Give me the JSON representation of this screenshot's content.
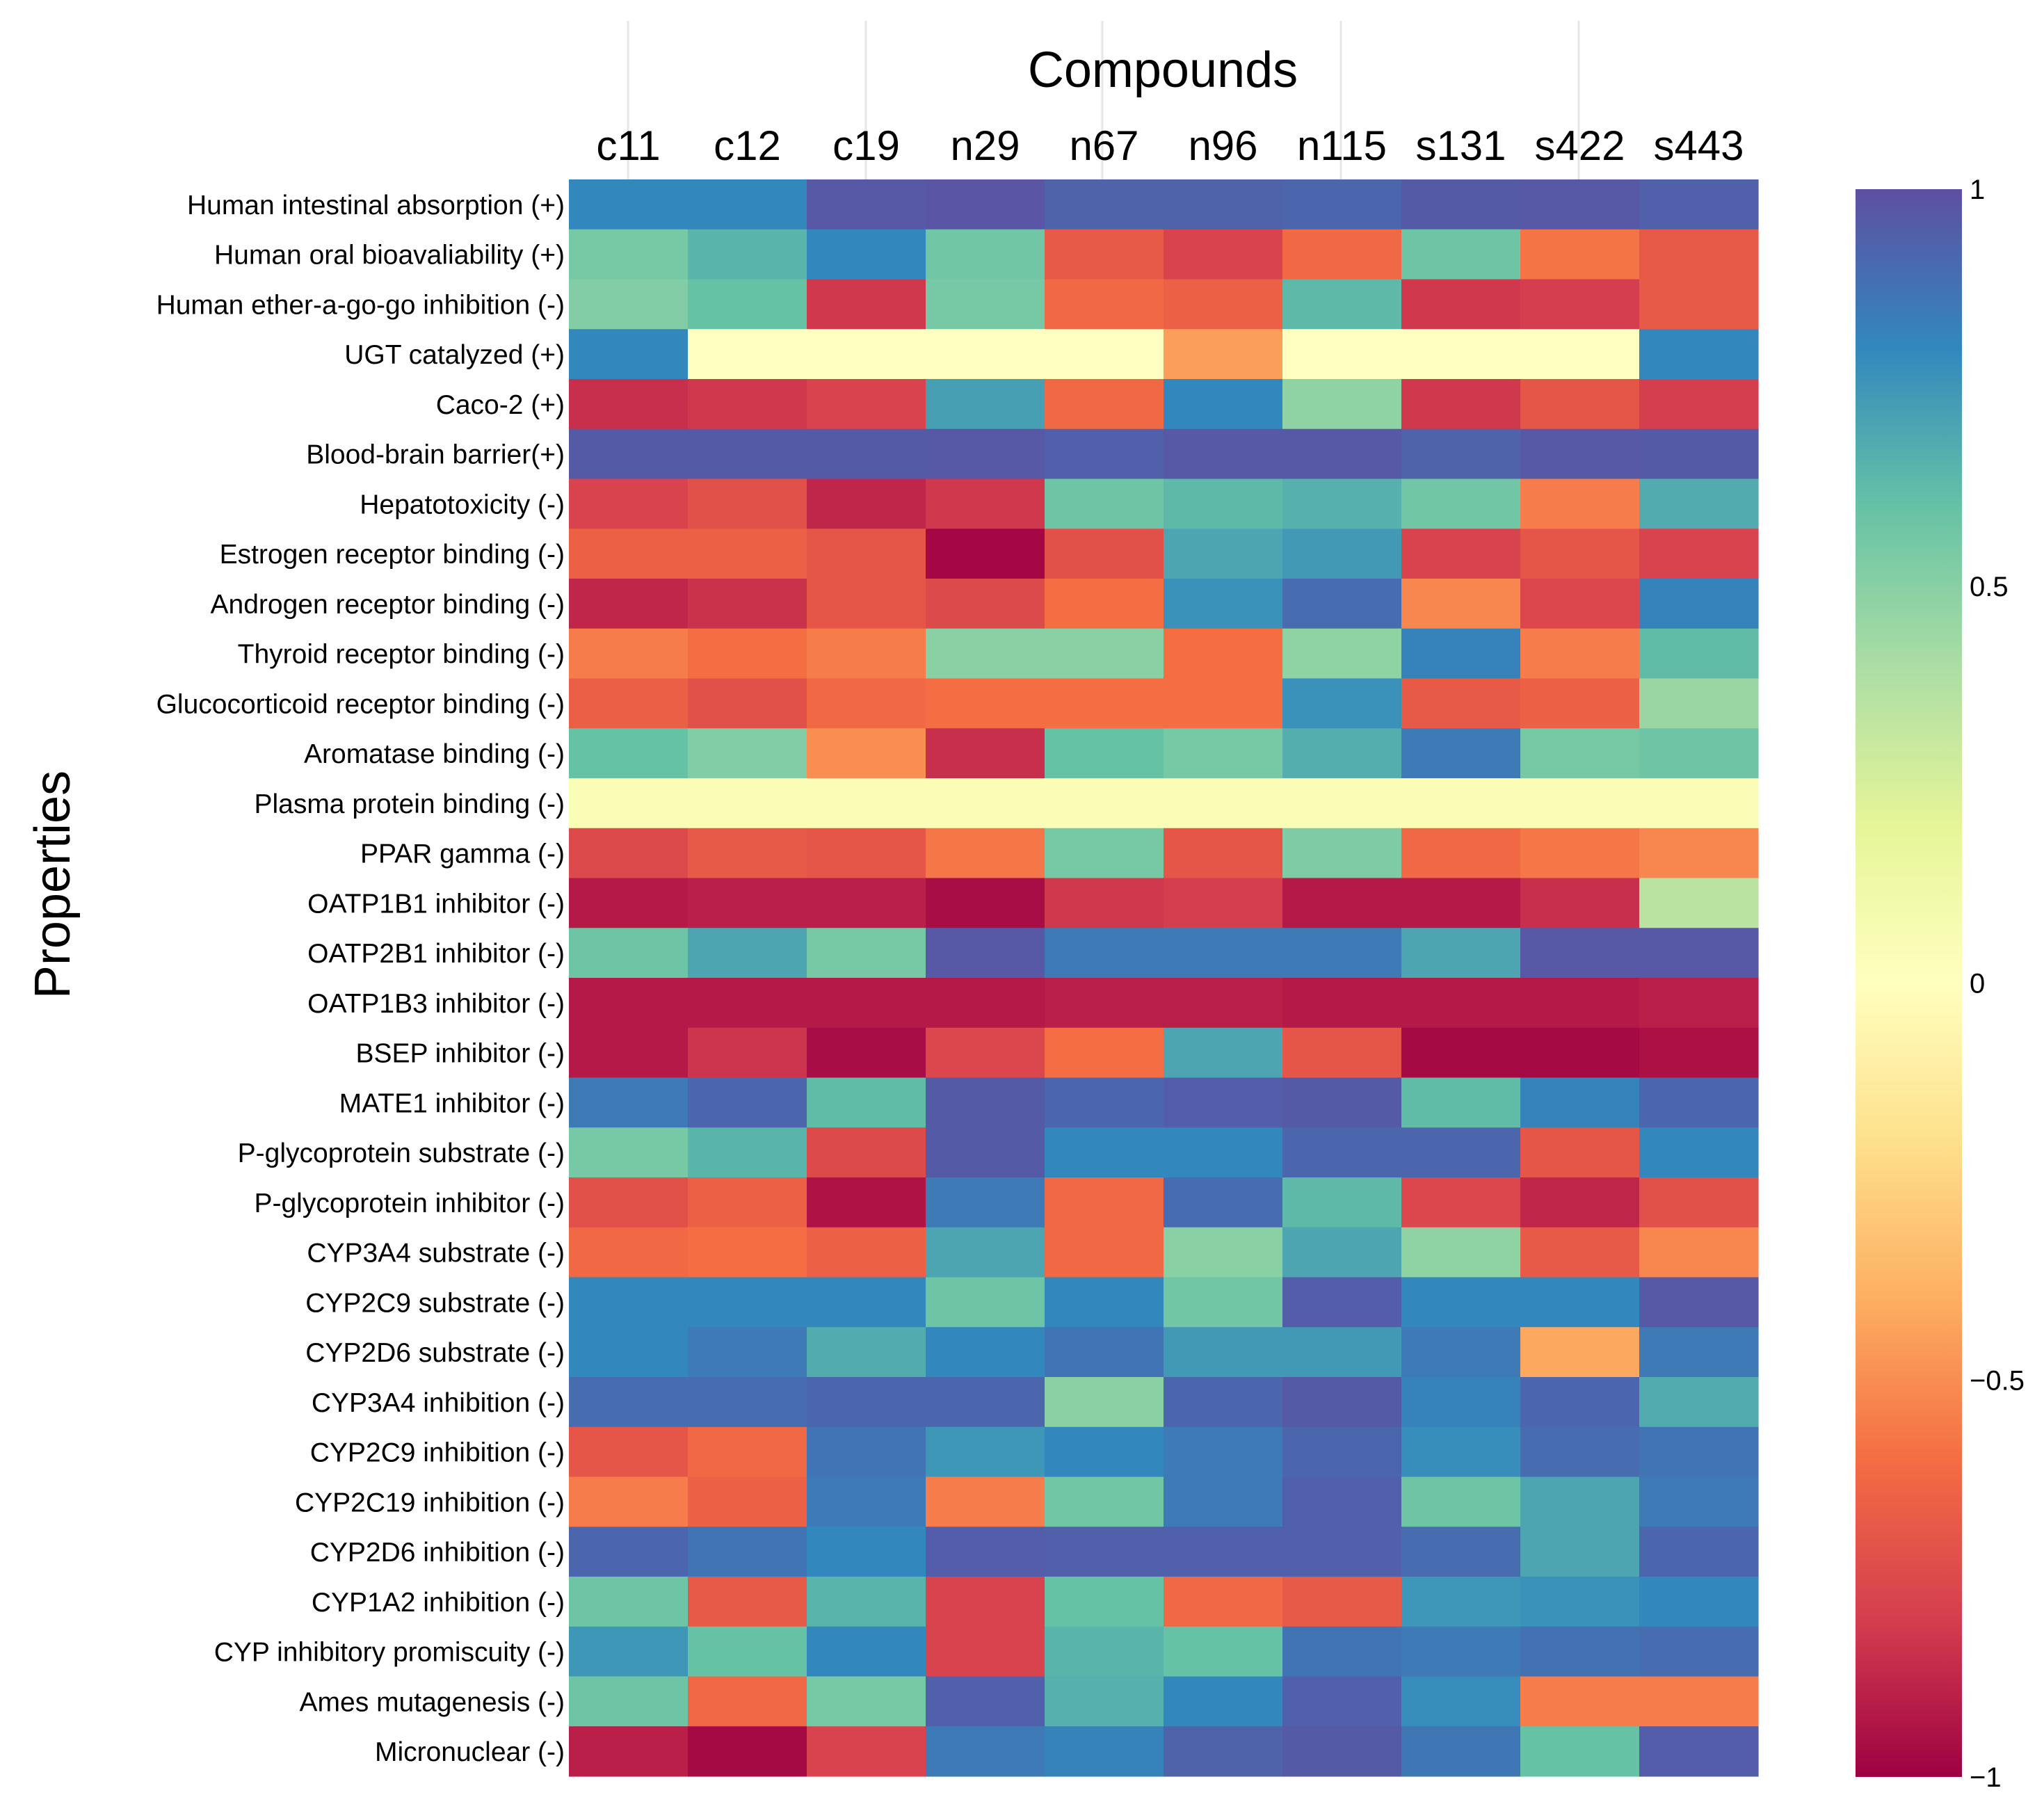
{
  "chart_data": {
    "type": "heatmap",
    "title": "Compounds",
    "xlabel": "Compounds",
    "ylabel": "Properties",
    "x_tick_position": "top",
    "categories": [
      "c11",
      "c12",
      "c19",
      "n29",
      "n67",
      "n96",
      "n115",
      "s131",
      "s422",
      "s443"
    ],
    "rows": [
      "Human intestinal absorption (+)",
      "Human oral bioavaliability (+)",
      "Human ether-a-go-go inhibition (-)",
      "UGT catalyzed (+)",
      "Caco-2 (+)",
      "Blood-brain barrier(+)",
      "Hepatotoxicity (-)",
      "Estrogen receptor binding (-)",
      "Androgen receptor binding (-)",
      "Thyroid receptor binding (-)",
      "Glucocorticoid receptor binding (-)",
      "Aromatase binding (-)",
      "Plasma protein binding (-)",
      "PPAR gamma (-)",
      "OATP1B1 inhibitor (-)",
      "OATP2B1 inhibitor (-)",
      "OATP1B3 inhibitor  (-)",
      "BSEP inhibitor (-)",
      "MATE1 inhibitor (-)",
      "P-glycoprotein substrate (-)",
      "P-glycoprotein inhibitor (-)",
      "CYP3A4 substrate  (-)",
      "CYP2C9 substrate (-)",
      "CYP2D6 substrate (-)",
      "CYP3A4 inhibition (-)",
      "CYP2C9 inhibition (-)",
      "CYP2C19 inhibition (-)",
      "CYP2D6 inhibition (-)",
      "CYP1A2 inhibition (-)",
      "CYP inhibitory promiscuity (-)",
      "Ames mutagenesis (-)",
      "Micronuclear (-)"
    ],
    "values": [
      [
        0.8,
        0.8,
        0.97,
        0.98,
        0.93,
        0.93,
        0.92,
        0.96,
        0.97,
        0.94
      ],
      [
        0.55,
        0.65,
        0.8,
        0.57,
        -0.68,
        -0.78,
        -0.62,
        0.58,
        -0.58,
        -0.68
      ],
      [
        0.52,
        0.6,
        -0.82,
        0.55,
        -0.62,
        -0.65,
        0.63,
        -0.82,
        -0.8,
        -0.68
      ],
      [
        0.8,
        0.0,
        0.0,
        0.0,
        0.0,
        -0.45,
        0.0,
        0.0,
        0.0,
        0.8
      ],
      [
        -0.85,
        -0.82,
        -0.78,
        0.72,
        -0.62,
        0.8,
        0.48,
        -0.82,
        -0.7,
        -0.8
      ],
      [
        0.96,
        0.96,
        0.96,
        0.97,
        0.94,
        0.97,
        0.97,
        0.93,
        0.97,
        0.96
      ],
      [
        -0.78,
        -0.72,
        -0.88,
        -0.82,
        0.58,
        0.63,
        0.66,
        0.57,
        -0.55,
        0.68
      ],
      [
        -0.65,
        -0.65,
        -0.7,
        -0.98,
        -0.72,
        0.7,
        0.74,
        -0.78,
        -0.7,
        -0.78
      ],
      [
        -0.88,
        -0.84,
        -0.7,
        -0.75,
        -0.6,
        0.77,
        0.9,
        -0.52,
        -0.76,
        0.82
      ],
      [
        -0.55,
        -0.6,
        -0.55,
        0.5,
        0.5,
        -0.6,
        0.48,
        0.82,
        -0.55,
        0.62
      ],
      [
        -0.66,
        -0.72,
        -0.62,
        -0.6,
        -0.6,
        -0.6,
        0.77,
        -0.68,
        -0.65,
        0.45
      ],
      [
        0.6,
        0.52,
        -0.5,
        -0.85,
        0.6,
        0.55,
        0.67,
        0.85,
        0.55,
        0.58
      ],
      [
        0.05,
        0.05,
        0.05,
        0.05,
        0.05,
        0.05,
        0.05,
        0.05,
        0.05,
        0.05
      ],
      [
        -0.75,
        -0.68,
        -0.7,
        -0.57,
        0.55,
        -0.7,
        0.53,
        -0.62,
        -0.57,
        -0.52
      ],
      [
        -0.92,
        -0.9,
        -0.9,
        -0.96,
        -0.82,
        -0.8,
        -0.92,
        -0.92,
        -0.85,
        0.35
      ],
      [
        0.58,
        0.7,
        0.55,
        0.97,
        0.85,
        0.85,
        0.85,
        0.7,
        0.97,
        0.97
      ],
      [
        -0.92,
        -0.92,
        -0.92,
        -0.92,
        -0.9,
        -0.9,
        -0.92,
        -0.92,
        -0.92,
        -0.9
      ],
      [
        -0.92,
        -0.83,
        -0.96,
        -0.76,
        -0.6,
        0.7,
        -0.7,
        -0.97,
        -0.97,
        -0.95
      ],
      [
        0.85,
        0.92,
        0.62,
        0.96,
        0.92,
        0.95,
        0.96,
        0.62,
        0.82,
        0.92
      ],
      [
        0.55,
        0.65,
        -0.75,
        0.96,
        0.8,
        0.8,
        0.92,
        0.92,
        -0.7,
        0.8
      ],
      [
        -0.72,
        -0.65,
        -0.94,
        0.85,
        -0.62,
        0.9,
        0.63,
        -0.76,
        -0.88,
        -0.72
      ],
      [
        -0.62,
        -0.6,
        -0.65,
        0.7,
        -0.62,
        0.5,
        0.7,
        0.48,
        -0.68,
        -0.52
      ],
      [
        0.8,
        0.8,
        0.8,
        0.58,
        0.8,
        0.57,
        0.95,
        0.8,
        0.8,
        0.97
      ],
      [
        0.8,
        0.85,
        0.68,
        0.8,
        0.87,
        0.74,
        0.74,
        0.85,
        -0.42,
        0.85
      ],
      [
        0.9,
        0.9,
        0.92,
        0.92,
        0.5,
        0.92,
        0.96,
        0.82,
        0.92,
        0.68
      ],
      [
        -0.7,
        -0.62,
        0.87,
        0.75,
        0.8,
        0.85,
        0.92,
        0.78,
        0.9,
        0.87
      ],
      [
        -0.55,
        -0.65,
        0.85,
        -0.55,
        0.57,
        0.85,
        0.94,
        0.58,
        0.7,
        0.85
      ],
      [
        0.92,
        0.87,
        0.8,
        0.95,
        0.94,
        0.94,
        0.94,
        0.9,
        0.7,
        0.92
      ],
      [
        0.58,
        -0.68,
        0.65,
        -0.78,
        0.6,
        -0.62,
        -0.68,
        0.75,
        0.77,
        0.8
      ],
      [
        0.75,
        0.6,
        0.8,
        -0.78,
        0.65,
        0.6,
        0.87,
        0.85,
        0.88,
        0.9
      ],
      [
        0.58,
        -0.62,
        0.55,
        0.94,
        0.66,
        0.8,
        0.94,
        0.78,
        -0.55,
        -0.55
      ],
      [
        -0.9,
        -0.97,
        -0.78,
        0.85,
        0.82,
        0.93,
        0.96,
        0.86,
        0.6,
        0.95
      ]
    ],
    "colorbar": {
      "min": -1,
      "max": 1,
      "ticks": [
        "1",
        "0.5",
        "0",
        "−0.5",
        "−1"
      ],
      "colormap": "Spectral"
    },
    "grid": true,
    "legend": "right"
  }
}
